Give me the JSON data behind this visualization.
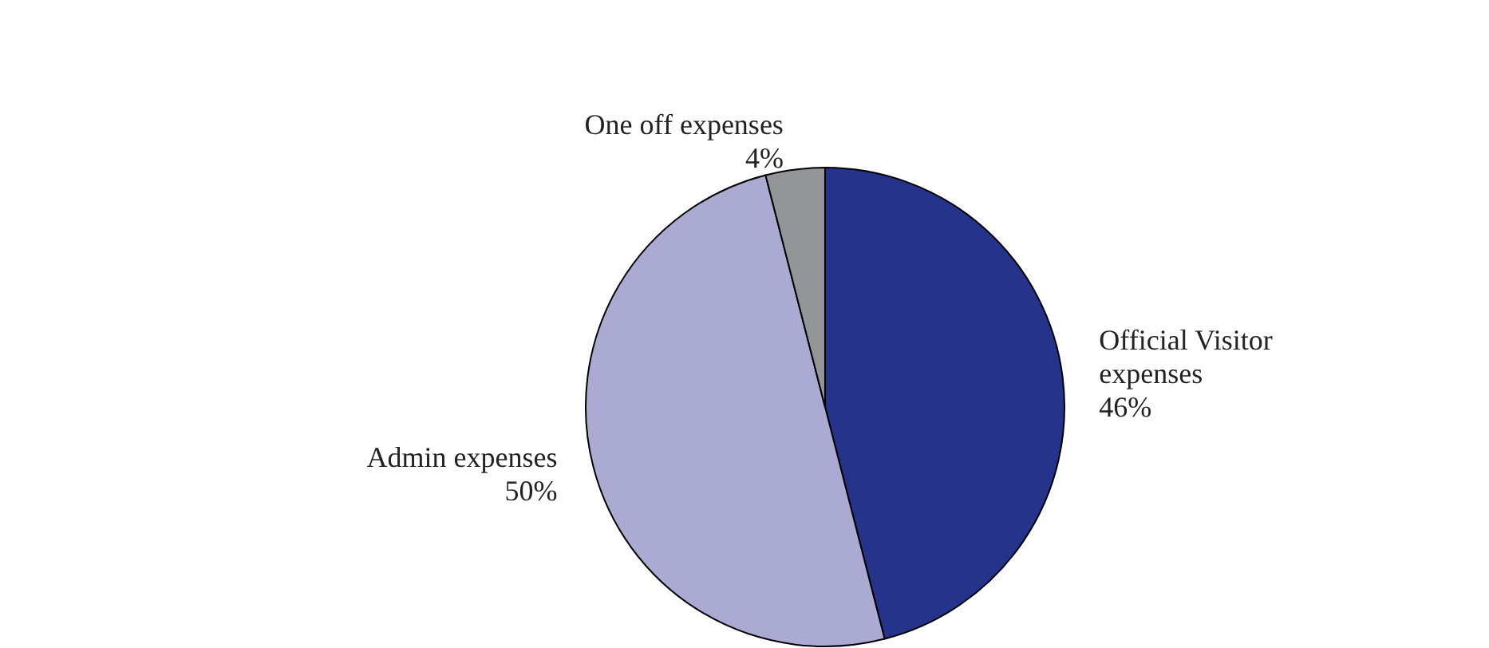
{
  "chart_data": {
    "type": "pie",
    "categories": [
      "Official Visitor expenses",
      "Admin expenses",
      "One off expenses"
    ],
    "values": [
      46,
      50,
      4
    ],
    "colors": [
      "#25338a",
      "#aaaad3",
      "#939598"
    ],
    "value_labels": [
      "46%",
      "50%",
      "4%"
    ]
  }
}
